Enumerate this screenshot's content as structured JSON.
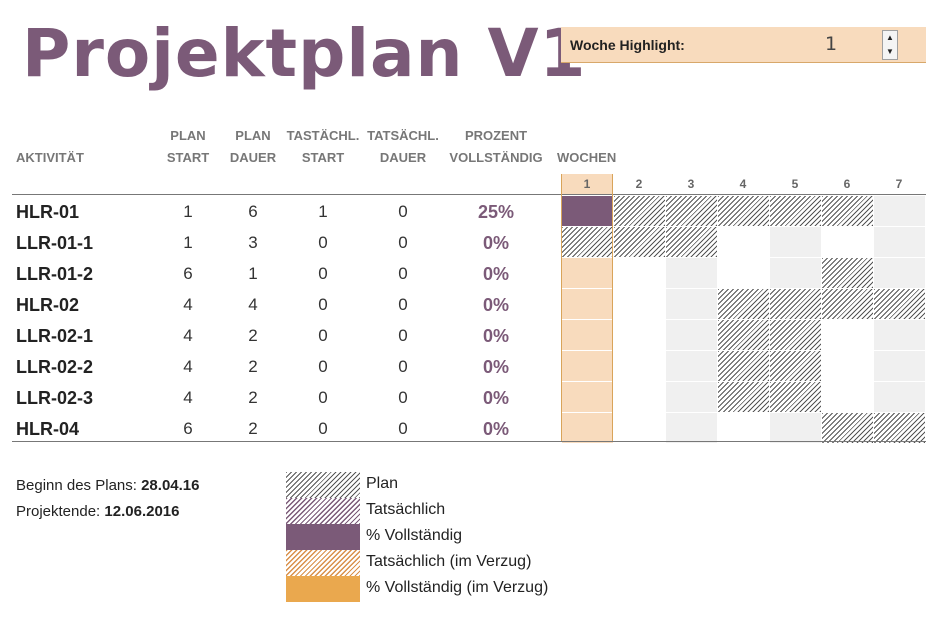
{
  "title": "Projektplan V1",
  "highlight": {
    "label": "Woche Highlight:",
    "value": "1"
  },
  "headers": {
    "activity": "AKTIVITÄT",
    "plan_start": [
      "PLAN",
      "START"
    ],
    "plan_duration": [
      "PLAN",
      "DAUER"
    ],
    "actual_start": [
      "TASTÄCHL.",
      "START"
    ],
    "actual_duration": [
      "TATSÄCHL.",
      "DAUER"
    ],
    "percent": [
      "PROZENT",
      "VOLLSTÄNDIG"
    ],
    "weeks": "WOCHEN"
  },
  "weeks": [
    "1",
    "2",
    "3",
    "4",
    "5",
    "6",
    "7"
  ],
  "highlight_week": 1,
  "rows": [
    {
      "name": "HLR-01",
      "plan_start": "1",
      "plan_duration": "6",
      "actual_start": "1",
      "actual_duration": "0",
      "percent": "25%"
    },
    {
      "name": "LLR-01-1",
      "plan_start": "1",
      "plan_duration": "3",
      "actual_start": "0",
      "actual_duration": "0",
      "percent": "0%"
    },
    {
      "name": "LLR-01-2",
      "plan_start": "6",
      "plan_duration": "1",
      "actual_start": "0",
      "actual_duration": "0",
      "percent": "0%"
    },
    {
      "name": "HLR-02",
      "plan_start": "4",
      "plan_duration": "4",
      "actual_start": "0",
      "actual_duration": "0",
      "percent": "0%"
    },
    {
      "name": "LLR-02-1",
      "plan_start": "4",
      "plan_duration": "2",
      "actual_start": "0",
      "actual_duration": "0",
      "percent": "0%"
    },
    {
      "name": "LLR-02-2",
      "plan_start": "4",
      "plan_duration": "2",
      "actual_start": "0",
      "actual_duration": "0",
      "percent": "0%"
    },
    {
      "name": "LLR-02-3",
      "plan_start": "4",
      "plan_duration": "2",
      "actual_start": "0",
      "actual_duration": "0",
      "percent": "0%"
    },
    {
      "name": "HLR-04",
      "plan_start": "6",
      "plan_duration": "2",
      "actual_start": "0",
      "actual_duration": "0",
      "percent": "0%"
    }
  ],
  "info": {
    "start_label": "Beginn des Plans:",
    "start_value": "28.04.16",
    "end_label": "Projektende:",
    "end_value": "12.06.2016"
  },
  "legend": [
    {
      "key": "plan",
      "label": "Plan"
    },
    {
      "key": "actual",
      "label": "Tatsächlich"
    },
    {
      "key": "pct",
      "label": "% Vollständig"
    },
    {
      "key": "late",
      "label": "Tatsächlich (im Verzug)"
    },
    {
      "key": "latepct",
      "label": "% Vollständig (im Verzug)"
    }
  ],
  "colors": {
    "accent": "#7b5a78",
    "highlight": "#f8dbbd",
    "late": "#eaa84e"
  }
}
